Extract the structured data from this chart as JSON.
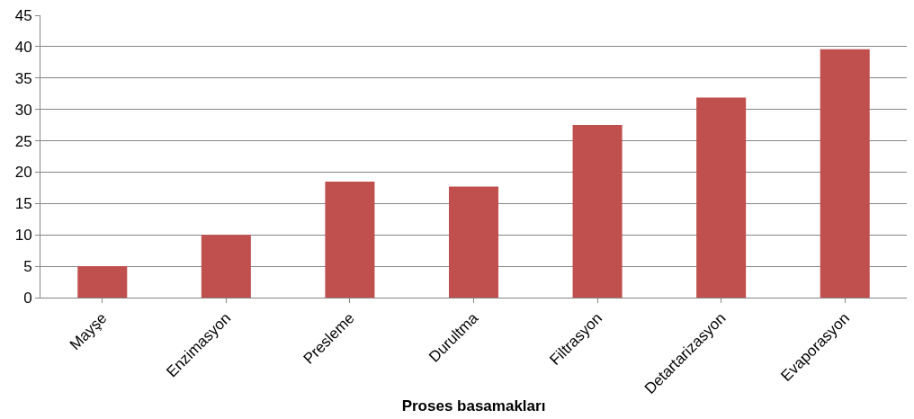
{
  "chart_data": {
    "type": "bar",
    "xlabel": "Proses basamakları",
    "categories": [
      "Mayşe",
      "Enzimasyon",
      "Presleme",
      "Durultma",
      "Filtrasyon",
      "Detartarizasyon",
      "Evaporasyon"
    ],
    "values": [
      5,
      10,
      18.5,
      17.7,
      27.5,
      31.9,
      39.6
    ],
    "color": "#c0504d",
    "ylim": [
      0,
      45
    ],
    "yticks": [
      0,
      5,
      10,
      15,
      20,
      25,
      30,
      35,
      40,
      45
    ],
    "grid": "y"
  }
}
